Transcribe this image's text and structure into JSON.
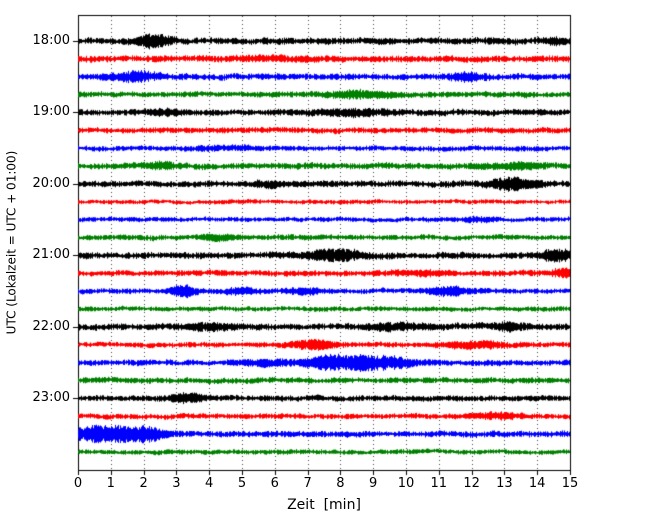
{
  "figure": {
    "background": "#ffffff",
    "frame_color": "#000000"
  },
  "chart_data": {
    "type": "line",
    "subtype": "seismogram-drum-record",
    "title": "",
    "xlabel": "Zeit  [min]",
    "ylabel": "UTC (Lokalzeit = UTC + 01:00)",
    "xlim": [
      0,
      15
    ],
    "x_ticks": [
      "0",
      "1",
      "2",
      "3",
      "4",
      "5",
      "6",
      "7",
      "8",
      "9",
      "10",
      "11",
      "12",
      "13",
      "14",
      "15"
    ],
    "grid": "vertical-dotted-per-minute",
    "grid_color": "#444444",
    "row_color_cycle": [
      "#000000",
      "#ff0000",
      "#0000ff",
      "#008000"
    ],
    "y_ticks": [
      {
        "label": "18:00",
        "row": 0
      },
      {
        "label": "19:00",
        "row": 4
      },
      {
        "label": "20:00",
        "row": 8
      },
      {
        "label": "21:00",
        "row": 12
      },
      {
        "label": "22:00",
        "row": 16
      },
      {
        "label": "23:00",
        "row": 20
      }
    ],
    "rows": [
      {
        "time": "18:00",
        "color": "#000000",
        "seed": 101,
        "base_amp": 2.6,
        "bursts": [
          {
            "pos": 2.3,
            "width": 0.5,
            "amp": 2.0
          },
          {
            "pos": 14.6,
            "width": 0.4,
            "amp": 0.8
          }
        ]
      },
      {
        "time": "18:15",
        "color": "#ff0000",
        "seed": 102,
        "base_amp": 2.5,
        "bursts": [
          {
            "pos": 6.0,
            "width": 1.5,
            "amp": 0.4
          }
        ]
      },
      {
        "time": "18:30",
        "color": "#0000ff",
        "seed": 103,
        "base_amp": 2.5,
        "bursts": [
          {
            "pos": 1.7,
            "width": 0.7,
            "amp": 1.3
          },
          {
            "pos": 11.8,
            "width": 0.5,
            "amp": 0.9
          }
        ]
      },
      {
        "time": "18:45",
        "color": "#008000",
        "seed": 104,
        "base_amp": 2.2,
        "bursts": [
          {
            "pos": 8.6,
            "width": 1.0,
            "amp": 1.1
          }
        ]
      },
      {
        "time": "19:00",
        "color": "#000000",
        "seed": 105,
        "base_amp": 2.4,
        "bursts": [
          {
            "pos": 2.6,
            "width": 0.5,
            "amp": 0.7
          },
          {
            "pos": 8.3,
            "width": 1.2,
            "amp": 0.8
          }
        ]
      },
      {
        "time": "19:15",
        "color": "#ff0000",
        "seed": 106,
        "base_amp": 2.2,
        "bursts": []
      },
      {
        "time": "19:30",
        "color": "#0000ff",
        "seed": 107,
        "base_amp": 2.0,
        "bursts": [
          {
            "pos": 4.5,
            "width": 0.8,
            "amp": 0.5
          }
        ]
      },
      {
        "time": "19:45",
        "color": "#008000",
        "seed": 108,
        "base_amp": 2.4,
        "bursts": [
          {
            "pos": 2.5,
            "width": 0.6,
            "amp": 0.8
          },
          {
            "pos": 13.4,
            "width": 0.7,
            "amp": 0.9
          }
        ]
      },
      {
        "time": "20:00",
        "color": "#000000",
        "seed": 109,
        "base_amp": 2.4,
        "bursts": [
          {
            "pos": 5.8,
            "width": 0.5,
            "amp": 0.8
          },
          {
            "pos": 13.3,
            "width": 0.7,
            "amp": 1.8
          }
        ]
      },
      {
        "time": "20:15",
        "color": "#ff0000",
        "seed": 110,
        "base_amp": 1.6,
        "bursts": []
      },
      {
        "time": "20:30",
        "color": "#0000ff",
        "seed": 111,
        "base_amp": 1.8,
        "bursts": [
          {
            "pos": 12.2,
            "width": 0.6,
            "amp": 0.9
          }
        ]
      },
      {
        "time": "20:45",
        "color": "#008000",
        "seed": 112,
        "base_amp": 2.0,
        "bursts": [
          {
            "pos": 4.3,
            "width": 0.6,
            "amp": 0.9
          }
        ]
      },
      {
        "time": "21:00",
        "color": "#000000",
        "seed": 113,
        "base_amp": 2.5,
        "bursts": [
          {
            "pos": 7.8,
            "width": 0.8,
            "amp": 1.8
          },
          {
            "pos": 14.6,
            "width": 0.5,
            "amp": 1.6
          }
        ]
      },
      {
        "time": "21:15",
        "color": "#ff0000",
        "seed": 114,
        "base_amp": 2.2,
        "bursts": [
          {
            "pos": 10.5,
            "width": 0.8,
            "amp": 0.6
          },
          {
            "pos": 14.8,
            "width": 0.4,
            "amp": 1.2
          }
        ]
      },
      {
        "time": "21:30",
        "color": "#0000ff",
        "seed": 115,
        "base_amp": 2.0,
        "bursts": [
          {
            "pos": 3.2,
            "width": 0.35,
            "amp": 2.4
          },
          {
            "pos": 5.0,
            "width": 0.5,
            "amp": 1.0
          },
          {
            "pos": 6.9,
            "width": 0.5,
            "amp": 1.0
          },
          {
            "pos": 11.3,
            "width": 0.6,
            "amp": 1.6
          }
        ]
      },
      {
        "time": "21:45",
        "color": "#008000",
        "seed": 116,
        "base_amp": 1.8,
        "bursts": []
      },
      {
        "time": "22:00",
        "color": "#000000",
        "seed": 117,
        "base_amp": 2.5,
        "bursts": [
          {
            "pos": 4.0,
            "width": 0.7,
            "amp": 0.8
          },
          {
            "pos": 9.6,
            "width": 0.8,
            "amp": 0.8
          },
          {
            "pos": 13.1,
            "width": 0.6,
            "amp": 0.9
          }
        ]
      },
      {
        "time": "22:15",
        "color": "#ff0000",
        "seed": 118,
        "base_amp": 2.0,
        "bursts": [
          {
            "pos": 7.1,
            "width": 0.7,
            "amp": 1.6
          },
          {
            "pos": 12.1,
            "width": 0.9,
            "amp": 1.2
          }
        ]
      },
      {
        "time": "22:30",
        "color": "#0000ff",
        "seed": 119,
        "base_amp": 2.2,
        "bursts": [
          {
            "pos": 5.6,
            "width": 0.8,
            "amp": 0.9
          },
          {
            "pos": 7.4,
            "width": 0.6,
            "amp": 1.4
          },
          {
            "pos": 8.8,
            "width": 1.3,
            "amp": 2.6
          }
        ]
      },
      {
        "time": "22:45",
        "color": "#008000",
        "seed": 120,
        "base_amp": 2.2,
        "bursts": []
      },
      {
        "time": "23:00",
        "color": "#000000",
        "seed": 121,
        "base_amp": 2.2,
        "bursts": [
          {
            "pos": 3.3,
            "width": 0.5,
            "amp": 1.5
          }
        ]
      },
      {
        "time": "23:15",
        "color": "#ff0000",
        "seed": 122,
        "base_amp": 2.0,
        "bursts": [
          {
            "pos": 12.7,
            "width": 0.8,
            "amp": 1.0
          }
        ]
      },
      {
        "time": "23:30",
        "color": "#0000ff",
        "seed": 123,
        "base_amp": 2.3,
        "bursts": [
          {
            "pos": 0.9,
            "width": 1.0,
            "amp": 3.2
          },
          {
            "pos": 2.2,
            "width": 0.5,
            "amp": 1.8
          }
        ]
      },
      {
        "time": "23:45",
        "color": "#008000",
        "seed": 124,
        "base_amp": 1.8,
        "bursts": []
      }
    ]
  }
}
